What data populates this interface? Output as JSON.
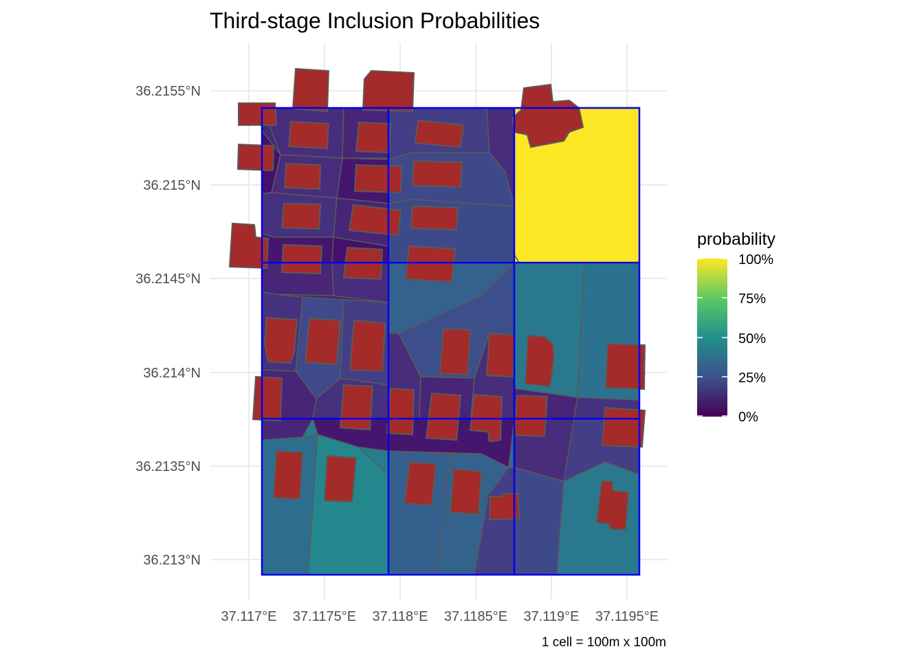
{
  "title": "Third-stage Inclusion Probabilities",
  "caption": "1 cell = 100m x 100m",
  "chart_data": {
    "type": "map",
    "x_ticks": [
      "37.117°E",
      "37.1175°E",
      "37.118°E",
      "37.1185°E",
      "37.119°E",
      "37.1195°E"
    ],
    "y_ticks": [
      "36.2155°N",
      "36.215°N",
      "36.2145°N",
      "36.214°N",
      "36.2135°N",
      "36.213°N"
    ],
    "legend": {
      "title": "probability",
      "labels": [
        "100%",
        "75%",
        "50%",
        "25%",
        "0%"
      ],
      "palette": "viridis"
    },
    "grid_cells": [
      {
        "row": 1,
        "col": 1,
        "probability": 0.14
      },
      {
        "row": 1,
        "col": 2,
        "probability": 0.16
      },
      {
        "row": 1,
        "col": 3,
        "probability": 1.0
      },
      {
        "row": 2,
        "col": 1,
        "probability": 0.13
      },
      {
        "row": 2,
        "col": 2,
        "probability": 0.28
      },
      {
        "row": 2,
        "col": 3,
        "probability": 0.45
      },
      {
        "row": 3,
        "col": 1,
        "probability": 0.42
      },
      {
        "row": 3,
        "col": 2,
        "probability": 0.35
      },
      {
        "row": 3,
        "col": 3,
        "probability": 0.42
      }
    ],
    "colors": {
      "grid_line": "#0000ee",
      "building_fill": "#a52a2a",
      "polygon_stroke": "#5a5a5a",
      "panel_grid": "#ebebeb"
    }
  }
}
